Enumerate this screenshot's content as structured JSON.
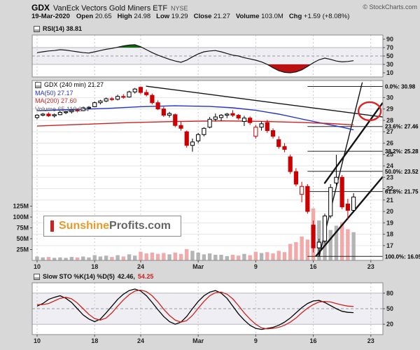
{
  "header": {
    "symbol": "GDX",
    "name": "VanEck Vectors Gold Miners ETF",
    "exchange": "NYSE",
    "copyright": "© StockCharts.com",
    "date": "19-Mar-2020",
    "quote": [
      {
        "label": "Open",
        "value": "20.65"
      },
      {
        "label": "High",
        "value": "24.98"
      },
      {
        "label": "Low",
        "value": "19.29"
      },
      {
        "label": "Close",
        "value": "21.27"
      },
      {
        "label": "Volume",
        "value": "103.0M"
      },
      {
        "label": "Chg",
        "value": "+1.59 (+8.08%)"
      }
    ]
  },
  "watermark": {
    "part1": "Sunshine",
    "part2": "Profits.com"
  },
  "colors": {
    "candle_up": "#000000",
    "candle_down": "#cc0000",
    "vol_up": "#b4b4b4",
    "vol_down": "#f2a9a9",
    "ma50": "#2233cc",
    "ma200": "#cc2222",
    "ellipse": "#dd2222",
    "rsi_over": "#0a6a0a",
    "rsi_under": "#bb1111"
  },
  "chart_data": [
    {
      "type": "line",
      "panel": "rsi",
      "label": "RSI(14) 38.81",
      "ylim": [
        0,
        100
      ],
      "yticks": [
        90,
        70,
        50,
        30,
        10
      ],
      "hlines": {
        "solid": [
          70,
          30
        ],
        "dashed": [
          50
        ]
      },
      "fills": {
        "above": 70,
        "below": 30
      },
      "series": [
        {
          "name": "RSI(14)",
          "color": "#111111",
          "values": [
            58,
            60,
            62,
            63,
            65,
            64,
            62,
            60,
            58,
            57,
            60,
            63,
            66,
            68,
            71,
            74,
            76,
            77,
            72,
            65,
            58,
            52,
            47,
            42,
            38,
            35,
            40,
            48,
            55,
            60,
            62,
            63,
            60,
            56,
            52,
            50,
            46,
            43,
            40,
            36,
            30,
            22,
            15,
            11,
            10,
            12,
            17,
            25,
            34,
            41,
            45,
            42,
            38,
            36,
            37,
            38.81
          ]
        }
      ]
    },
    {
      "type": "candlestick",
      "panel": "price",
      "legend": [
        {
          "text": "GDX (240 min) 21.27",
          "color": "#000000"
        },
        {
          "text": "MA(50) 27.17",
          "color": "#2233cc"
        },
        {
          "text": "MA(200) 27.60",
          "color": "#cc2222"
        },
        {
          "text": "Volume 65,110,084",
          "color": "#666666"
        }
      ],
      "ylim": [
        15.7,
        31.5
      ],
      "yticks": [
        17,
        18,
        19,
        20,
        21,
        22,
        23,
        24,
        25,
        26,
        27,
        28,
        29,
        30
      ],
      "volume_axis": [
        {
          "v": 125,
          "label": "125M"
        },
        {
          "v": 100,
          "label": "100M"
        },
        {
          "v": 75,
          "label": "75M"
        },
        {
          "v": 50,
          "label": "50M"
        },
        {
          "v": 25,
          "label": "25M"
        }
      ],
      "xticks": [
        {
          "bar": 0,
          "label": "10"
        },
        {
          "bar": 10,
          "label": "18"
        },
        {
          "bar": 18,
          "label": "24"
        },
        {
          "bar": 28,
          "label": "Mar"
        },
        {
          "bar": 38,
          "label": "9"
        },
        {
          "bar": 48,
          "label": "16"
        },
        {
          "bar": 58,
          "label": "23"
        }
      ],
      "fib_levels": [
        {
          "level": 30.98,
          "label": "0.0%: 30.98"
        },
        {
          "level": 27.46,
          "label": "23.6%: 27.46"
        },
        {
          "level": 25.28,
          "label": "38.2%: 25.28"
        },
        {
          "level": 23.52,
          "label": "50.0%: 23.52"
        },
        {
          "level": 21.75,
          "label": "61.8%: 21.75"
        },
        {
          "level": 16.05,
          "label": "100.0%: 16.05"
        }
      ],
      "ohlc": [
        [
          28.25,
          28.55,
          28.1,
          28.45,
          9
        ],
        [
          28.45,
          28.65,
          28.35,
          28.55,
          7
        ],
        [
          28.55,
          28.7,
          28.3,
          28.4,
          8
        ],
        [
          28.4,
          28.6,
          28.25,
          28.5,
          6
        ],
        [
          28.5,
          28.8,
          28.45,
          28.7,
          7
        ],
        [
          28.7,
          28.85,
          28.55,
          28.75,
          6
        ],
        [
          28.75,
          29.0,
          28.6,
          28.9,
          8
        ],
        [
          28.9,
          29.05,
          28.7,
          28.85,
          7
        ],
        [
          28.85,
          29.2,
          28.8,
          29.1,
          9
        ],
        [
          29.1,
          29.25,
          28.95,
          29.15,
          7
        ],
        [
          29.2,
          29.65,
          29.15,
          29.55,
          12
        ],
        [
          29.55,
          29.8,
          29.4,
          29.7,
          9
        ],
        [
          29.7,
          30.0,
          29.6,
          29.9,
          11
        ],
        [
          29.9,
          30.05,
          29.7,
          29.85,
          8
        ],
        [
          29.85,
          30.25,
          29.75,
          30.1,
          12
        ],
        [
          30.1,
          30.3,
          29.9,
          30.05,
          9
        ],
        [
          30.05,
          30.6,
          30.0,
          30.5,
          14
        ],
        [
          30.5,
          30.85,
          30.35,
          30.75,
          11
        ],
        [
          30.9,
          30.98,
          30.3,
          30.45,
          20
        ],
        [
          30.45,
          30.7,
          30.1,
          30.25,
          16
        ],
        [
          30.2,
          30.35,
          29.4,
          29.55,
          18
        ],
        [
          29.55,
          29.75,
          28.9,
          29.0,
          15
        ],
        [
          29.0,
          29.2,
          28.3,
          28.45,
          17
        ],
        [
          28.45,
          28.75,
          28.25,
          28.6,
          14
        ],
        [
          28.5,
          28.6,
          27.4,
          27.55,
          18
        ],
        [
          27.55,
          27.9,
          27.1,
          27.3,
          15
        ],
        [
          27.0,
          27.1,
          25.6,
          25.8,
          26
        ],
        [
          25.8,
          26.4,
          25.25,
          26.1,
          22
        ],
        [
          26.2,
          26.9,
          26.0,
          26.75,
          18
        ],
        [
          26.75,
          27.4,
          26.6,
          27.3,
          14
        ],
        [
          27.4,
          28.3,
          27.3,
          28.1,
          16
        ],
        [
          28.1,
          28.6,
          27.9,
          28.3,
          13
        ],
        [
          28.25,
          28.55,
          27.95,
          28.45,
          13
        ],
        [
          28.45,
          28.65,
          28.2,
          28.55,
          10
        ],
        [
          28.6,
          28.9,
          28.3,
          28.45,
          13
        ],
        [
          28.45,
          28.55,
          28.05,
          28.2,
          11
        ],
        [
          27.9,
          28.4,
          27.5,
          28.2,
          15
        ],
        [
          28.2,
          28.35,
          27.6,
          27.8,
          12
        ],
        [
          26.6,
          27.6,
          26.4,
          27.4,
          20
        ],
        [
          27.4,
          27.9,
          27.1,
          27.7,
          17
        ],
        [
          27.8,
          28.05,
          26.9,
          27.1,
          19
        ],
        [
          27.1,
          27.3,
          26.4,
          26.6,
          16
        ],
        [
          26.3,
          26.6,
          25.5,
          25.7,
          22
        ],
        [
          25.7,
          26.0,
          25.2,
          25.45,
          19
        ],
        [
          24.8,
          25.0,
          23.3,
          23.5,
          38
        ],
        [
          23.5,
          23.8,
          22.2,
          22.4,
          42
        ],
        [
          21.5,
          22.6,
          20.8,
          22.2,
          55
        ],
        [
          22.2,
          22.4,
          19.8,
          20.0,
          48
        ],
        [
          18.8,
          19.2,
          16.4,
          16.8,
          120
        ],
        [
          16.8,
          17.6,
          16.05,
          17.3,
          92
        ],
        [
          17.4,
          19.8,
          17.2,
          19.6,
          95
        ],
        [
          19.6,
          22.4,
          19.4,
          22.1,
          70
        ],
        [
          22.5,
          24.98,
          22.3,
          23.0,
          80
        ],
        [
          23.0,
          23.2,
          20.2,
          20.4,
          88
        ],
        [
          20.65,
          21.1,
          19.29,
          20.1,
          72
        ],
        [
          20.1,
          21.6,
          19.9,
          21.27,
          65
        ]
      ],
      "ma50": [
        [
          0,
          28.85
        ],
        [
          6,
          28.95
        ],
        [
          12,
          29.05
        ],
        [
          18,
          29.2
        ],
        [
          24,
          29.28
        ],
        [
          30,
          29.22
        ],
        [
          34,
          29.1
        ],
        [
          38,
          28.88
        ],
        [
          42,
          28.55
        ],
        [
          46,
          28.12
        ],
        [
          50,
          27.7
        ],
        [
          53,
          27.4
        ],
        [
          55,
          27.17
        ]
      ],
      "ma200": [
        [
          0,
          27.5
        ],
        [
          8,
          27.65
        ],
        [
          16,
          27.8
        ],
        [
          24,
          27.9
        ],
        [
          32,
          27.95
        ],
        [
          40,
          27.9
        ],
        [
          46,
          27.82
        ],
        [
          51,
          27.72
        ],
        [
          55,
          27.6
        ]
      ],
      "trendlines": [
        {
          "x1": 19,
          "y1": 31.0,
          "x2": 60,
          "y2": 28.3,
          "w": 1.4
        },
        {
          "x1": 48.5,
          "y1": 16.1,
          "x2": 60,
          "y2": 23.0,
          "w": 2.4
        },
        {
          "x1": 50,
          "y1": 22.5,
          "x2": 60,
          "y2": 29.5,
          "w": 2.4
        },
        {
          "x1": 49,
          "y1": 16.05,
          "x2": 56.5,
          "y2": 31.3,
          "w": 1.4
        }
      ],
      "ellipse": {
        "x": 57.8,
        "y": 28.8,
        "rx": 16,
        "ry": 13
      }
    },
    {
      "type": "line",
      "panel": "sto",
      "label_prefix": "Slow STO %K(14) %D(5)",
      "label_k": "42.46,",
      "label_d": "54.25",
      "ylim": [
        0,
        100
      ],
      "yticks": [
        80,
        50,
        20
      ],
      "hlines": {
        "solid": [
          80,
          20
        ],
        "dashed": [
          50
        ]
      },
      "series": [
        {
          "name": "%K",
          "color": "#000000",
          "values": [
            55,
            60,
            68,
            72,
            75,
            70,
            62,
            50,
            38,
            30,
            25,
            30,
            42,
            55,
            68,
            78,
            85,
            88,
            84,
            75,
            62,
            48,
            35,
            25,
            20,
            24,
            35,
            50,
            64,
            75,
            82,
            85,
            80,
            70,
            55,
            40,
            28,
            18,
            12,
            10,
            12,
            14,
            18,
            24,
            32,
            42,
            52,
            60,
            65,
            66,
            62,
            56,
            50,
            45,
            43,
            42.46
          ]
        },
        {
          "name": "%D",
          "color": "#cc2222",
          "values": [
            58,
            58,
            60,
            65,
            70,
            72,
            69,
            61,
            50,
            39,
            31,
            28,
            32,
            42,
            55,
            67,
            77,
            84,
            86,
            83,
            75,
            63,
            49,
            37,
            28,
            24,
            27,
            37,
            51,
            64,
            75,
            81,
            82,
            78,
            69,
            56,
            42,
            30,
            20,
            13,
            11,
            12,
            14,
            18,
            24,
            32,
            42,
            51,
            58,
            63,
            64,
            63,
            60,
            57,
            55,
            54.25
          ]
        }
      ]
    }
  ]
}
